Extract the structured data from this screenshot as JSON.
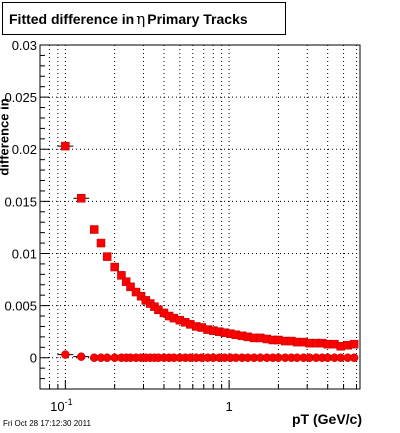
{
  "title": {
    "prefix": "Fitted difference in",
    "symbol": "η",
    "suffix": "Primary Tracks"
  },
  "footer_text": "Fri Oct 28 17:12:30 2011",
  "colors": {
    "marker": "#ff0000",
    "marker_edge": "#b00000",
    "frame": "#000000",
    "grid": "#000000"
  },
  "chart_data": {
    "type": "scatter",
    "title": "Fitted difference in η Primary Tracks",
    "xlabel": "pT (GeV/c)",
    "ylabel": "difference in",
    "x_scale": "log",
    "xlim": [
      0.07,
      6.3
    ],
    "ylim": [
      -0.003,
      0.03
    ],
    "grid": true,
    "x_ticks": [
      {
        "value": 0.1,
        "base": "10",
        "exp": "-1"
      },
      {
        "value": 1,
        "base": "1",
        "exp": ""
      }
    ],
    "y_ticks": [
      {
        "value": 0,
        "label": "0"
      },
      {
        "value": 0.005,
        "label": "0.005"
      },
      {
        "value": 0.01,
        "label": "0.01"
      },
      {
        "value": 0.015,
        "label": "0.015"
      },
      {
        "value": 0.02,
        "label": "0.02"
      },
      {
        "value": 0.025,
        "label": "0.025"
      },
      {
        "value": 0.03,
        "label": "0.03"
      }
    ],
    "series": [
      {
        "marker": "square",
        "points": [
          [
            0.1,
            0.0203
          ],
          [
            0.125,
            0.0153
          ],
          [
            0.15,
            0.0123
          ],
          [
            0.165,
            0.011
          ],
          [
            0.18,
            0.0097
          ],
          [
            0.2,
            0.0087
          ],
          [
            0.22,
            0.0079
          ],
          [
            0.235,
            0.0073
          ],
          [
            0.25,
            0.0068
          ],
          [
            0.27,
            0.0063
          ],
          [
            0.29,
            0.0059
          ],
          [
            0.31,
            0.0055
          ],
          [
            0.33,
            0.0052
          ],
          [
            0.35,
            0.0049
          ],
          [
            0.37,
            0.0046
          ],
          [
            0.4,
            0.0043
          ],
          [
            0.43,
            0.004
          ],
          [
            0.46,
            0.0038
          ],
          [
            0.5,
            0.0036
          ],
          [
            0.54,
            0.0034
          ],
          [
            0.58,
            0.0032
          ],
          [
            0.63,
            0.003
          ],
          [
            0.68,
            0.0029
          ],
          [
            0.74,
            0.0027
          ],
          [
            0.8,
            0.0026
          ],
          [
            0.87,
            0.0025
          ],
          [
            0.94,
            0.0024
          ],
          [
            1.02,
            0.0023
          ],
          [
            1.1,
            0.0022
          ],
          [
            1.2,
            0.0021
          ],
          [
            1.3,
            0.002
          ],
          [
            1.42,
            0.0019
          ],
          [
            1.55,
            0.0019
          ],
          [
            1.7,
            0.0018
          ],
          [
            1.85,
            0.0017
          ],
          [
            2.0,
            0.0017
          ],
          [
            2.2,
            0.0016
          ],
          [
            2.4,
            0.0016
          ],
          [
            2.6,
            0.0015
          ],
          [
            2.85,
            0.0015
          ],
          [
            3.1,
            0.0014
          ],
          [
            3.4,
            0.0014
          ],
          [
            3.7,
            0.0014
          ],
          [
            4.0,
            0.0013
          ],
          [
            4.4,
            0.0013
          ],
          [
            4.8,
            0.0011
          ],
          [
            5.3,
            0.0012
          ],
          [
            5.8,
            0.0013
          ]
        ]
      },
      {
        "marker": "circle",
        "points": [
          [
            0.1,
            0.0003
          ],
          [
            0.125,
            0.0001
          ],
          [
            0.15,
            0.0
          ],
          [
            0.165,
            0.0
          ],
          [
            0.18,
            0.0
          ],
          [
            0.2,
            0.0
          ],
          [
            0.22,
            0.0
          ],
          [
            0.235,
            0.0
          ],
          [
            0.25,
            0.0
          ],
          [
            0.27,
            0.0
          ],
          [
            0.29,
            0.0
          ],
          [
            0.31,
            0.0
          ],
          [
            0.33,
            0.0
          ],
          [
            0.35,
            0.0
          ],
          [
            0.37,
            0.0
          ],
          [
            0.4,
            0.0
          ],
          [
            0.43,
            0.0
          ],
          [
            0.46,
            0.0
          ],
          [
            0.5,
            0.0
          ],
          [
            0.54,
            0.0
          ],
          [
            0.58,
            0.0
          ],
          [
            0.63,
            0.0
          ],
          [
            0.68,
            0.0
          ],
          [
            0.74,
            0.0
          ],
          [
            0.8,
            0.0
          ],
          [
            0.87,
            0.0
          ],
          [
            0.94,
            0.0
          ],
          [
            1.02,
            0.0
          ],
          [
            1.1,
            0.0
          ],
          [
            1.2,
            0.0
          ],
          [
            1.3,
            0.0
          ],
          [
            1.42,
            0.0
          ],
          [
            1.55,
            0.0
          ],
          [
            1.7,
            0.0
          ],
          [
            1.85,
            0.0
          ],
          [
            2.0,
            0.0
          ],
          [
            2.2,
            0.0
          ],
          [
            2.4,
            0.0
          ],
          [
            2.6,
            0.0
          ],
          [
            2.85,
            0.0
          ],
          [
            3.1,
            0.0
          ],
          [
            3.4,
            0.0
          ],
          [
            3.7,
            0.0
          ],
          [
            4.0,
            0.0
          ],
          [
            4.4,
            0.0
          ],
          [
            4.8,
            0.0
          ],
          [
            5.3,
            0.0
          ],
          [
            5.8,
            0.0
          ]
        ]
      }
    ]
  }
}
